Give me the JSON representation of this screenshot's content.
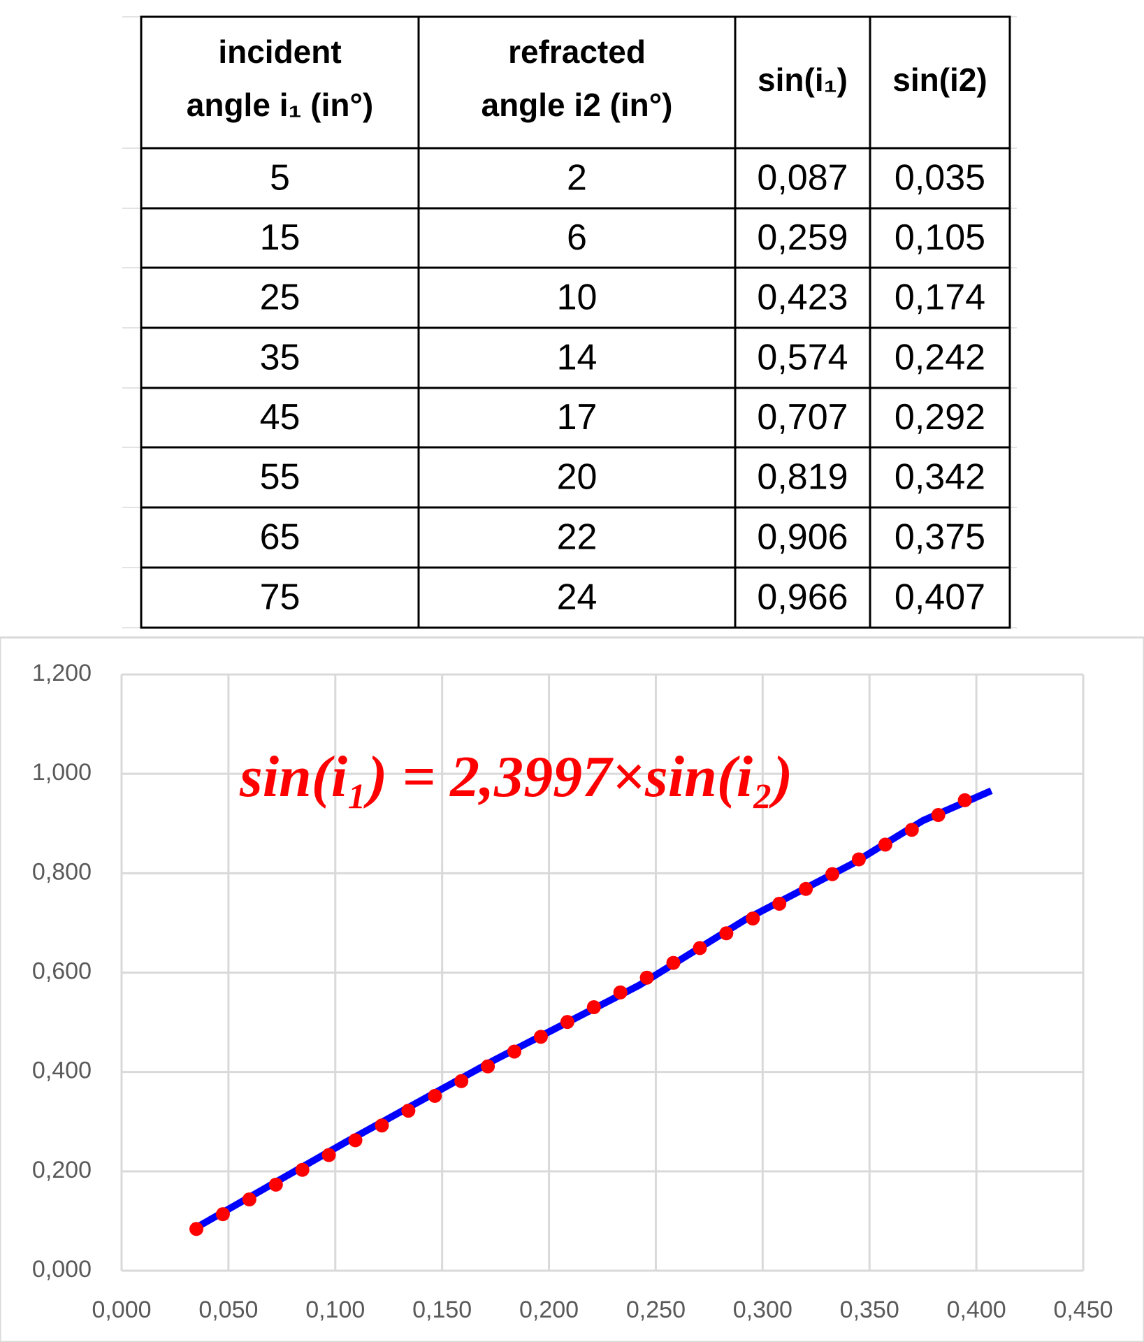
{
  "table": {
    "header": [
      "incident angle i₁ (in°)",
      "refracted angle i2 (in°)",
      "sin(i₁)",
      "sin(i2)"
    ],
    "rows": [
      [
        "5",
        "2",
        "0,087",
        "0,035"
      ],
      [
        "15",
        "6",
        "0,259",
        "0,105"
      ],
      [
        "25",
        "10",
        "0,423",
        "0,174"
      ],
      [
        "35",
        "14",
        "0,574",
        "0,242"
      ],
      [
        "45",
        "17",
        "0,707",
        "0,292"
      ],
      [
        "55",
        "20",
        "0,819",
        "0,342"
      ],
      [
        "65",
        "22",
        "0,906",
        "0,375"
      ],
      [
        "75",
        "24",
        "0,966",
        "0,407"
      ]
    ]
  },
  "chart_data": {
    "type": "line",
    "annotation": "sin(i₁) = 2,3997×sin(i₂)",
    "x": [
      0.035,
      0.105,
      0.174,
      0.242,
      0.292,
      0.342,
      0.375,
      0.407
    ],
    "series": [
      {
        "color": "#0000ff",
        "values": [
          0.087,
          0.259,
          0.423,
          0.574,
          0.707,
          0.819,
          0.906,
          0.966
        ]
      }
    ],
    "trendline": {
      "slope": 2.3997,
      "color": "#ff0000",
      "style": "dotted"
    },
    "xlim": [
      0,
      0.45
    ],
    "ylim": [
      0,
      1.2
    ],
    "xticks": [
      {
        "value": 0,
        "label": "0,000"
      },
      {
        "value": 0.05,
        "label": "0,050"
      },
      {
        "value": 0.1,
        "label": "0,100"
      },
      {
        "value": 0.15,
        "label": "0,150"
      },
      {
        "value": 0.2,
        "label": "0,200"
      },
      {
        "value": 0.25,
        "label": "0,250"
      },
      {
        "value": 0.3,
        "label": "0,300"
      },
      {
        "value": 0.35,
        "label": "0,350"
      },
      {
        "value": 0.4,
        "label": "0,400"
      },
      {
        "value": 0.45,
        "label": "0,450"
      }
    ],
    "yticks": [
      {
        "value": 0,
        "label": "0,000"
      },
      {
        "value": 0.2,
        "label": "0,200"
      },
      {
        "value": 0.4,
        "label": "0,400"
      },
      {
        "value": 0.6,
        "label": "0,600"
      },
      {
        "value": 0.8,
        "label": "0,800"
      },
      {
        "value": 1,
        "label": "1,000"
      },
      {
        "value": 1.2,
        "label": "1,200"
      }
    ],
    "grid": true
  }
}
